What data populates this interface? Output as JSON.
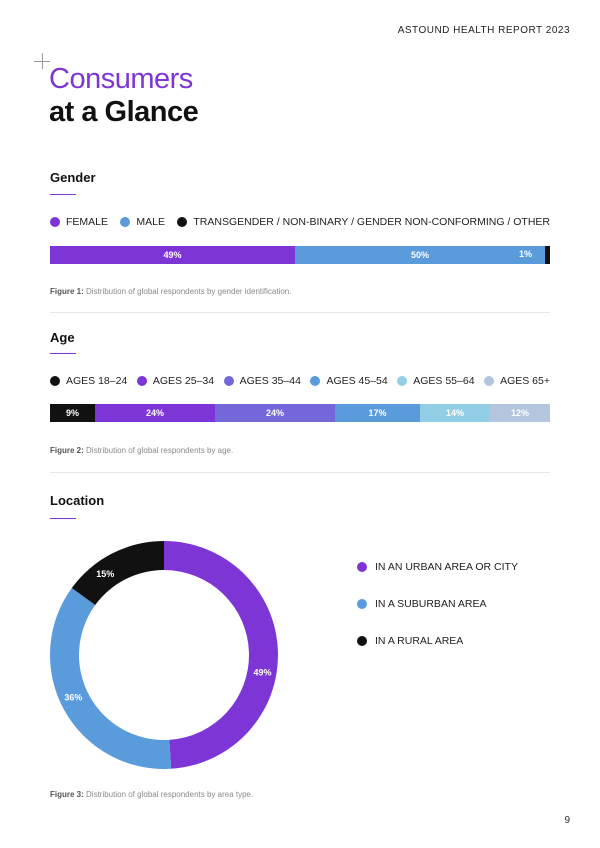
{
  "header": {
    "report_title": "ASTOUND HEALTH REPORT 2023"
  },
  "title": {
    "line1": "Consumers",
    "line2": "at a Glance"
  },
  "gender": {
    "heading": "Gender",
    "legend": [
      {
        "label": "FEMALE",
        "color": "#7e35d6"
      },
      {
        "label": "MALE",
        "color": "#5a9bdc"
      },
      {
        "label": "TRANSGENDER / NON-BINARY / GENDER NON-CONFORMING / OTHER",
        "color": "#111111"
      }
    ],
    "bar": [
      {
        "label": "49%",
        "value": 49,
        "color": "#7e35d6"
      },
      {
        "label": "50%",
        "value": 50,
        "color": "#5a9bdc"
      },
      {
        "label": "1%",
        "value": 1,
        "color": "#111111"
      }
    ],
    "caption_label": "Figure 1:",
    "caption_text": "Distribution of global respondents by gender identification."
  },
  "age": {
    "heading": "Age",
    "legend": [
      {
        "label": "AGES 18–24",
        "color": "#111111"
      },
      {
        "label": "AGES 25–34",
        "color": "#7e35d6"
      },
      {
        "label": "AGES 35–44",
        "color": "#7367d9"
      },
      {
        "label": "AGES 45–54",
        "color": "#5a9bdc"
      },
      {
        "label": "AGES 55–64",
        "color": "#92cfe6"
      },
      {
        "label": "AGES 65+",
        "color": "#b4c6dd"
      }
    ],
    "bar": [
      {
        "label": "9%",
        "value": 9,
        "color": "#111111"
      },
      {
        "label": "24%",
        "value": 24,
        "color": "#7e35d6"
      },
      {
        "label": "24%",
        "value": 24,
        "color": "#7367d9"
      },
      {
        "label": "17%",
        "value": 17,
        "color": "#5a9bdc"
      },
      {
        "label": "14%",
        "value": 14,
        "color": "#92cfe6"
      },
      {
        "label": "12%",
        "value": 12,
        "color": "#b4c6dd"
      }
    ],
    "caption_label": "Figure 2:",
    "caption_text": "Distribution of global respondents by age."
  },
  "location": {
    "heading": "Location",
    "legend": [
      {
        "label": "IN AN URBAN AREA OR CITY",
        "color": "#7e35d6"
      },
      {
        "label": "IN A SUBURBAN AREA",
        "color": "#5a9bdc"
      },
      {
        "label": "IN A RURAL AREA",
        "color": "#111111"
      }
    ],
    "caption_label": "Figure 3:",
    "caption_text": "Distribution of global respondents by area type."
  },
  "chart_data": {
    "type": "pie",
    "categories": [
      "IN AN URBAN AREA OR CITY",
      "IN A SUBURBAN AREA",
      "IN A RURAL AREA"
    ],
    "values": [
      49,
      36,
      15
    ],
    "labels": [
      "49%",
      "36%",
      "15%"
    ],
    "colors": [
      "#7e35d6",
      "#5a9bdc",
      "#111111"
    ],
    "donut": true
  },
  "footer": {
    "page_number": "9"
  }
}
